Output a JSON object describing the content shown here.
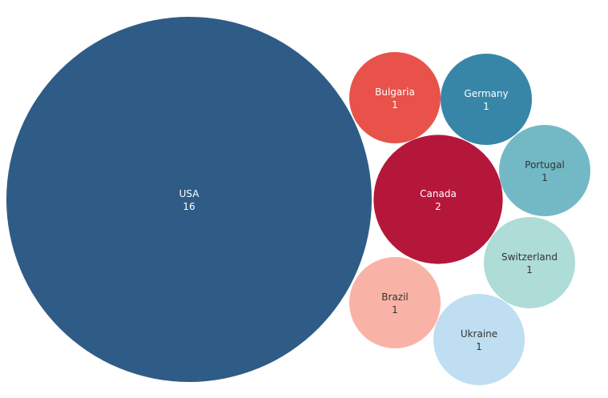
{
  "chart_data": {
    "type": "packed-bubble",
    "title": "",
    "points": [
      {
        "label": "USA",
        "value": 16,
        "color": "#2F5C87",
        "text_color": "#ffffff"
      },
      {
        "label": "Canada",
        "value": 2,
        "color": "#B5173A",
        "text_color": "#ffffff"
      },
      {
        "label": "Bulgaria",
        "value": 1,
        "color": "#E8524A",
        "text_color": "#ffffff"
      },
      {
        "label": "Germany",
        "value": 1,
        "color": "#3786A7",
        "text_color": "#ffffff"
      },
      {
        "label": "Portugal",
        "value": 1,
        "color": "#73B9C5",
        "text_color": "#333333"
      },
      {
        "label": "Switzerland",
        "value": 1,
        "color": "#AEDCD6",
        "text_color": "#333333"
      },
      {
        "label": "Ukraine",
        "value": 1,
        "color": "#BFDEF1",
        "text_color": "#333333"
      },
      {
        "label": "Brazil",
        "value": 1,
        "color": "#F9B3A6",
        "text_color": "#333333"
      }
    ]
  }
}
